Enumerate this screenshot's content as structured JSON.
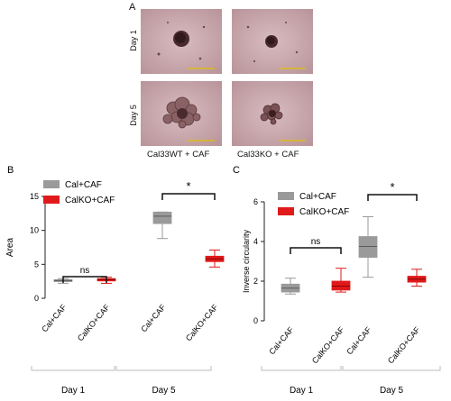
{
  "panel_a": {
    "letter": "A",
    "row_labels": [
      "Day 1",
      "Day 5"
    ],
    "col_labels": [
      "Cal33WT + CAF",
      "Cal33KO + CAF"
    ]
  },
  "colors": {
    "gray_box": "#9a9a9a",
    "red_box": "#e01a1a",
    "photo_bg": "#c9a9ad",
    "scalebar": "#e0c000"
  },
  "chart_data": [
    {
      "panel": "B",
      "type": "box",
      "ylabel": "Area",
      "ylim": [
        0,
        15
      ],
      "yticks": [
        0,
        5,
        10,
        15
      ],
      "categories": [
        "Cal+CAF",
        "CalKO+CAF",
        "Cal+CAF",
        "CalKO+CAF"
      ],
      "groups": [
        "Day 1",
        "Day 5"
      ],
      "legend": [
        {
          "name": "Cal+CAF",
          "color": "#9a9a9a"
        },
        {
          "name": "CalKO+CAF",
          "color": "#e01a1a"
        }
      ],
      "boxes": [
        {
          "category": "Cal+CAF",
          "group": "Day 1",
          "min": 2.2,
          "q1": 2.45,
          "median": 2.6,
          "q3": 2.75,
          "max": 2.9
        },
        {
          "category": "CalKO+CAF",
          "group": "Day 1",
          "min": 2.2,
          "q1": 2.55,
          "median": 2.75,
          "q3": 2.9,
          "max": 3.1
        },
        {
          "category": "Cal+CAF",
          "group": "Day 5",
          "min": 8.8,
          "q1": 11.0,
          "median": 12.1,
          "q3": 12.7,
          "max": 12.7
        },
        {
          "category": "CalKO+CAF",
          "group": "Day 5",
          "min": 4.6,
          "q1": 5.4,
          "median": 5.8,
          "q3": 6.2,
          "max": 7.1
        }
      ],
      "significance": [
        {
          "label": "ns",
          "between": [
            0,
            1
          ]
        },
        {
          "label": "*",
          "between": [
            2,
            3
          ]
        }
      ]
    },
    {
      "panel": "C",
      "type": "box",
      "ylabel": "Inverse circularity",
      "ylim": [
        0,
        6
      ],
      "yticks": [
        0,
        2,
        4,
        6
      ],
      "categories": [
        "Cal+CAF",
        "CalKO+CAF",
        "Cal+CAF",
        "CalKO+CAF"
      ],
      "groups": [
        "Day 1",
        "Day 5"
      ],
      "legend": [
        {
          "name": "Cal+CAF",
          "color": "#9a9a9a"
        },
        {
          "name": "CalKO+CAF",
          "color": "#e01a1a"
        }
      ],
      "boxes": [
        {
          "category": "Cal+CAF",
          "group": "Day 1",
          "min": 1.35,
          "q1": 1.45,
          "median": 1.65,
          "q3": 1.85,
          "max": 2.15
        },
        {
          "category": "CalKO+CAF",
          "group": "Day 1",
          "min": 1.45,
          "q1": 1.55,
          "median": 1.75,
          "q3": 2.0,
          "max": 2.65
        },
        {
          "category": "Cal+CAF",
          "group": "Day 5",
          "min": 2.2,
          "q1": 3.2,
          "median": 3.75,
          "q3": 4.25,
          "max": 5.25
        },
        {
          "category": "CalKO+CAF",
          "group": "Day 5",
          "min": 1.75,
          "q1": 1.95,
          "median": 2.1,
          "q3": 2.25,
          "max": 2.6
        }
      ],
      "significance": [
        {
          "label": "ns",
          "between": [
            0,
            1
          ]
        },
        {
          "label": "*",
          "between": [
            2,
            3
          ]
        }
      ]
    }
  ]
}
